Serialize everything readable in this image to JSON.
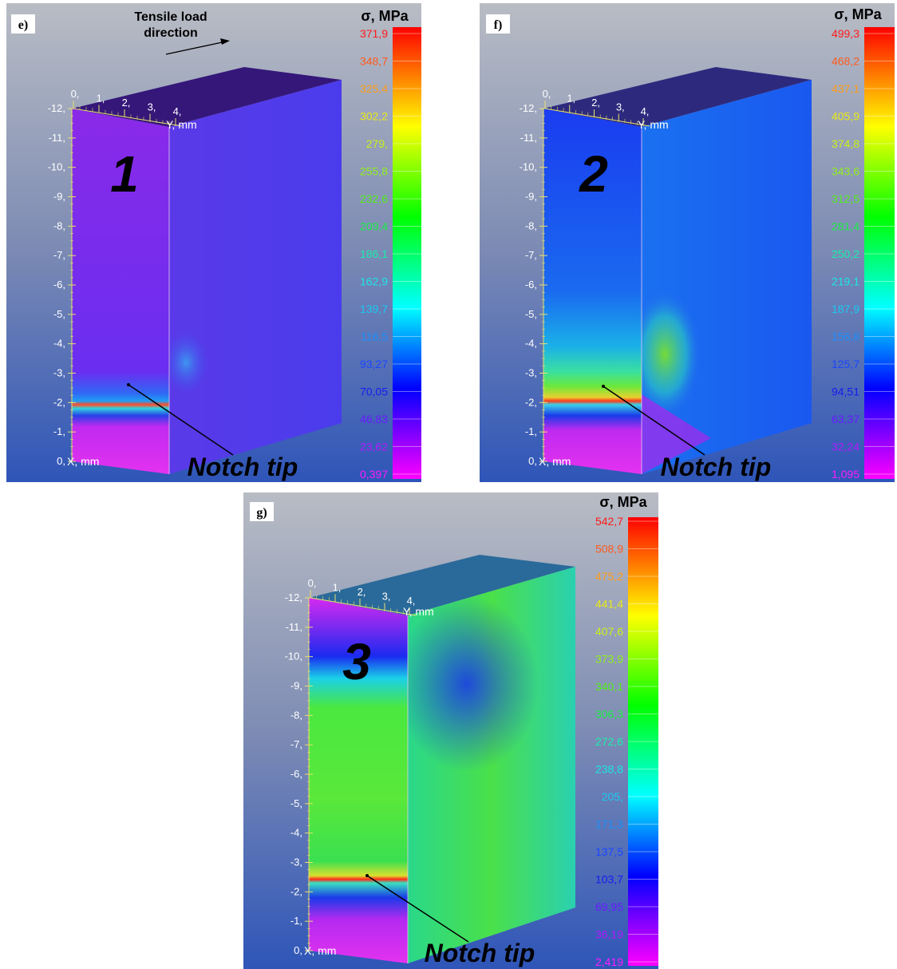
{
  "figure": {
    "load_label_line1": "Tensile load",
    "load_label_line2": "direction",
    "panels": [
      {
        "id": "e",
        "tag": "e)",
        "case_number": "1",
        "colorbar_title": "σ, MPa",
        "colorbar_ticks": [
          "371,9",
          "348,7",
          "325,4",
          "302,2",
          "279,",
          "255,8",
          "232,6",
          "209,4",
          "186,1",
          "162,9",
          "139,7",
          "116,5",
          "93,27",
          "70,05",
          "46,83",
          "23,62",
          "0,397"
        ],
        "x_ticks": [
          "-12,",
          "-11,",
          "-10,",
          "-9,",
          "-8,",
          "-7,",
          "-6,",
          "-5,",
          "-4,",
          "-3,",
          "-2,",
          "-1,",
          "0,"
        ],
        "x_axis_label": "X, mm",
        "y_ticks": [
          "0,",
          "1,",
          "2,",
          "3,",
          "4,"
        ],
        "y_axis_label": "Y, mm",
        "notch_label": "Notch tip"
      },
      {
        "id": "f",
        "tag": "f)",
        "case_number": "2",
        "colorbar_title": "σ, MPa",
        "colorbar_ticks": [
          "499,3",
          "468,2",
          "437,1",
          "405,9",
          "374,8",
          "343,6",
          "312,5",
          "281,4",
          "250,2",
          "219,1",
          "187,9",
          "156,8",
          "125,7",
          "94,51",
          "63,37",
          "32,24",
          "1,095"
        ],
        "x_ticks": [
          "-12,",
          "-11,",
          "-10,",
          "-9,",
          "-8,",
          "-7,",
          "-6,",
          "-5,",
          "-4,",
          "-3,",
          "-2,",
          "-1,",
          "0,"
        ],
        "x_axis_label": "X, mm",
        "y_ticks": [
          "0,",
          "1,",
          "2,",
          "3,",
          "4,"
        ],
        "y_axis_label": "Y, mm",
        "notch_label": "Notch tip"
      },
      {
        "id": "g",
        "tag": "g)",
        "case_number": "3",
        "colorbar_title": "σ, MPa",
        "colorbar_ticks": [
          "542,7",
          "508,9",
          "475,2",
          "441,4",
          "407,6",
          "373,9",
          "340,1",
          "306,3",
          "272,6",
          "238,8",
          "205,",
          "171,3",
          "137,5",
          "103,7",
          "69,95",
          "36,19",
          "2,419"
        ],
        "x_ticks": [
          "-12,",
          "-11,",
          "-10,",
          "-9,",
          "-8,",
          "-7,",
          "-6,",
          "-5,",
          "-4,",
          "-3,",
          "-2,",
          "-1,",
          "0,"
        ],
        "x_axis_label": "X, mm",
        "y_ticks": [
          "0,",
          "1,",
          "2,",
          "3,",
          "4,"
        ],
        "y_axis_label": "Y, mm",
        "notch_label": "Notch tip"
      }
    ]
  },
  "colors": {
    "tick_colors": [
      "#ff1a1a",
      "#ff5a1e",
      "#ff9d1a",
      "#e8e81a",
      "#c8f01a",
      "#8ff01a",
      "#50ee1a",
      "#1aee46",
      "#1aeeaa",
      "#1ae6e6",
      "#1ac8f0",
      "#1a90ff",
      "#1a46ff",
      "#1a1aee",
      "#6a1aff",
      "#b41aff",
      "#ff1aff"
    ]
  }
}
